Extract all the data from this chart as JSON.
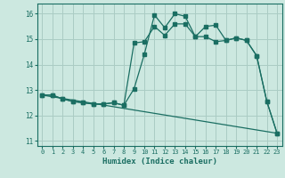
{
  "xlabel": "Humidex (Indice chaleur)",
  "bg_color": "#cce8e0",
  "grid_color": "#aaccc4",
  "line_color": "#1a6e62",
  "xlim": [
    -0.5,
    23.5
  ],
  "ylim": [
    10.8,
    16.4
  ],
  "yticks": [
    11,
    12,
    13,
    14,
    15,
    16
  ],
  "xticks": [
    0,
    1,
    2,
    3,
    4,
    5,
    6,
    7,
    8,
    9,
    10,
    11,
    12,
    13,
    14,
    15,
    16,
    17,
    18,
    19,
    20,
    21,
    22,
    23
  ],
  "line1_x": [
    0,
    1,
    2,
    3,
    4,
    5,
    6,
    7,
    8,
    9,
    10,
    11,
    12,
    13,
    14,
    15,
    16,
    17,
    18,
    19,
    20,
    21,
    22,
    23
  ],
  "line1_y": [
    12.8,
    12.8,
    12.65,
    12.55,
    12.5,
    12.45,
    12.45,
    12.5,
    12.4,
    13.05,
    14.4,
    15.95,
    15.45,
    16.0,
    15.9,
    15.1,
    15.1,
    14.9,
    14.95,
    15.05,
    14.95,
    14.35,
    12.55,
    11.3
  ],
  "line2_x": [
    0,
    1,
    2,
    3,
    4,
    5,
    6,
    7,
    8,
    9,
    10,
    11,
    12,
    13,
    14,
    15,
    16,
    17,
    18,
    19,
    20,
    21,
    22,
    23
  ],
  "line2_y": [
    12.8,
    12.8,
    12.65,
    12.55,
    12.5,
    12.45,
    12.45,
    12.5,
    12.4,
    14.85,
    14.9,
    15.5,
    15.15,
    15.6,
    15.6,
    15.1,
    15.5,
    15.55,
    14.95,
    15.05,
    14.95,
    14.35,
    12.55,
    11.3
  ],
  "line3_x": [
    0,
    23
  ],
  "line3_y": [
    12.8,
    11.3
  ]
}
